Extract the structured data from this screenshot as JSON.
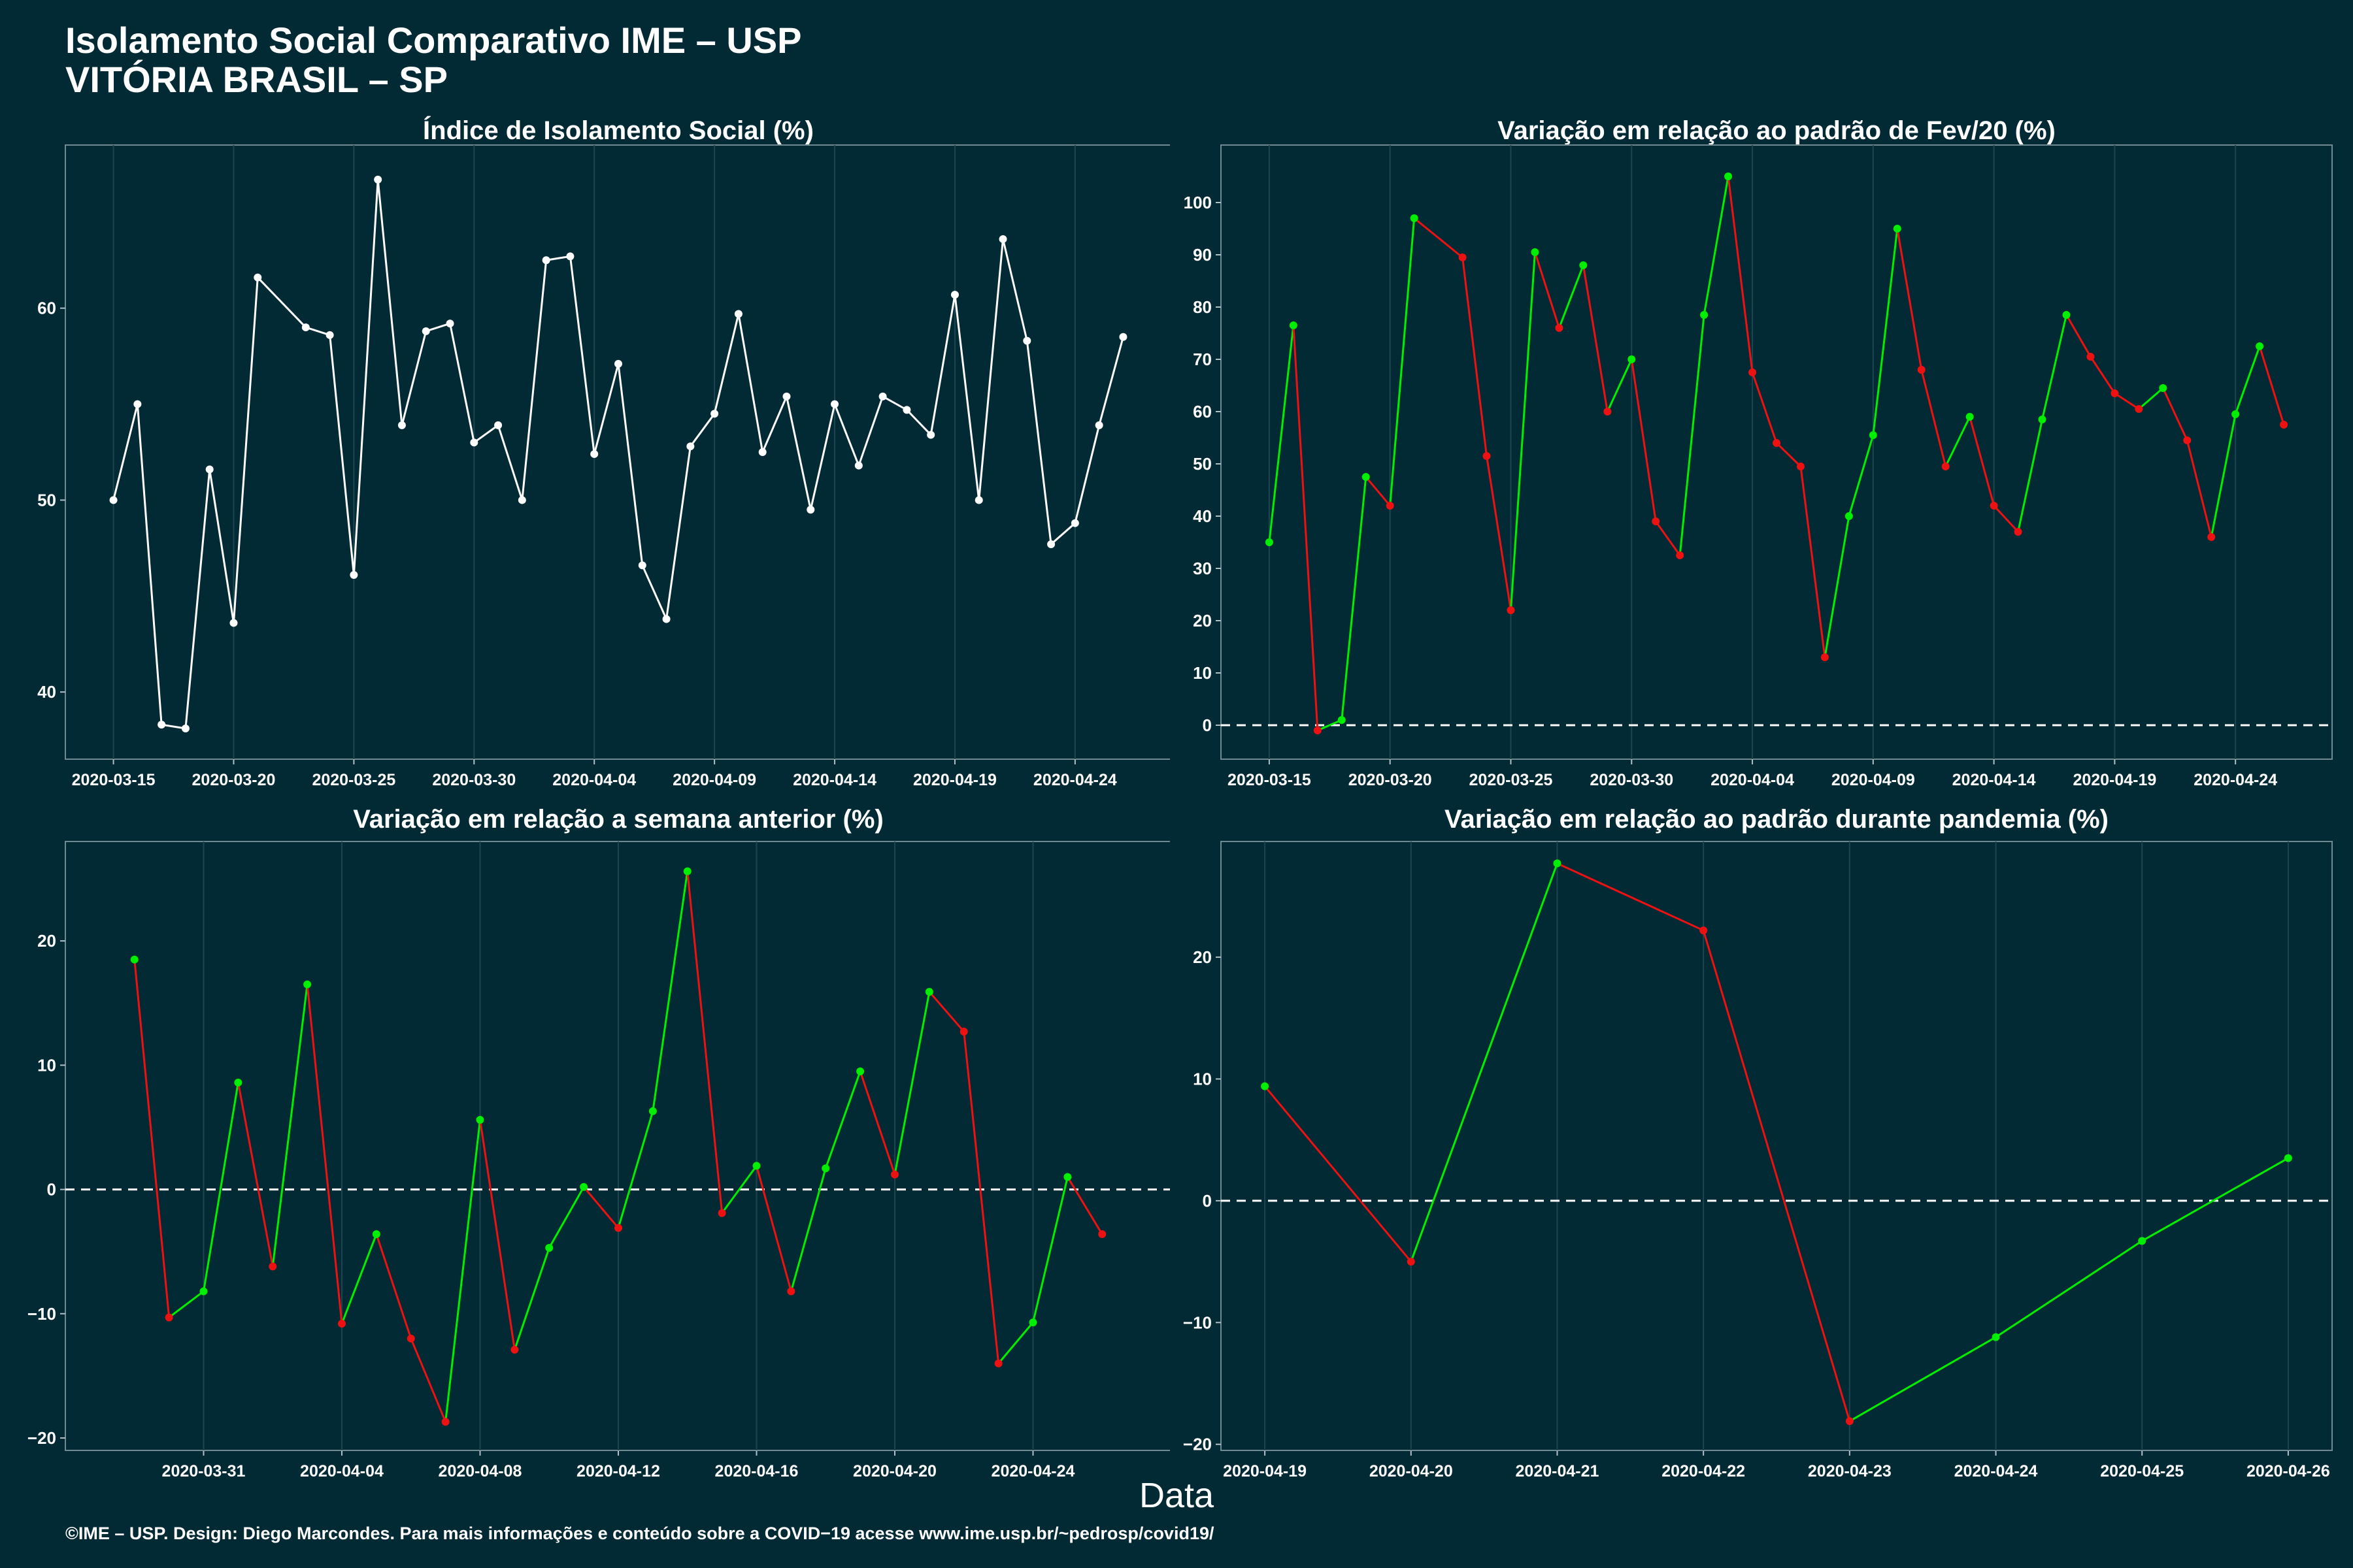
{
  "header": {
    "title": "Isolamento Social Comparativo IME – USP",
    "subtitle": "VITÓRIA BRASIL – SP"
  },
  "x_axis_label": "Data",
  "footer": "©IME – USP. Design: Diego Marcondes. Para mais informações e conteúdo sobre a COVID−19 acesse www.ime.usp.br/~pedrosp/covid19/",
  "colors": {
    "background": "#022a35",
    "line_white": "#ffffff",
    "positive": "#00ee00",
    "negative": "#ee1111",
    "zero_line": "#ffffff"
  },
  "chart_data": [
    {
      "id": "p1",
      "type": "line",
      "title": "Índice de Isolamento Social (%)",
      "xlim": [
        "2020-03-13",
        "2020-04-28"
      ],
      "xticks": [
        "2020-03-15",
        "2020-03-20",
        "2020-03-25",
        "2020-03-30",
        "2020-04-04",
        "2020-04-09",
        "2020-04-14",
        "2020-04-19",
        "2020-04-24"
      ],
      "ylim": [
        36.5,
        68.5
      ],
      "yticks": [
        40,
        50,
        60
      ],
      "color_mode": "white",
      "zero_line": false,
      "series": [
        {
          "x": [
            "2020-03-15",
            "2020-03-16",
            "2020-03-17",
            "2020-03-18",
            "2020-03-19",
            "2020-03-20",
            "2020-03-21",
            "2020-03-23",
            "2020-03-24",
            "2020-03-25",
            "2020-03-26",
            "2020-03-27",
            "2020-03-28",
            "2020-03-29",
            "2020-03-30",
            "2020-03-31",
            "2020-04-01",
            "2020-04-02",
            "2020-04-03",
            "2020-04-04",
            "2020-04-05",
            "2020-04-06",
            "2020-04-07",
            "2020-04-08",
            "2020-04-09",
            "2020-04-10",
            "2020-04-11",
            "2020-04-12",
            "2020-04-13",
            "2020-04-14",
            "2020-04-15",
            "2020-04-16",
            "2020-04-17",
            "2020-04-18",
            "2020-04-19",
            "2020-04-20",
            "2020-04-21",
            "2020-04-22",
            "2020-04-23",
            "2020-04-24",
            "2020-04-25",
            "2020-04-26"
          ],
          "y": [
            50.0,
            55.0,
            38.3,
            38.1,
            51.6,
            43.6,
            61.6,
            59.0,
            58.6,
            46.1,
            66.7,
            53.9,
            58.8,
            59.2,
            53.0,
            53.9,
            50.0,
            62.5,
            62.7,
            52.4,
            57.1,
            46.6,
            43.8,
            52.8,
            54.5,
            59.7,
            52.5,
            55.4,
            49.5,
            55.0,
            51.8,
            55.4,
            54.7,
            53.4,
            60.7,
            50.0,
            63.6,
            58.3,
            47.7,
            48.8,
            53.9,
            58.5
          ]
        }
      ]
    },
    {
      "id": "p2",
      "type": "line",
      "title": "Variação em relação ao padrão de Fev/20 (%)",
      "xlim": [
        "2020-03-13",
        "2020-04-28"
      ],
      "xticks": [
        "2020-03-15",
        "2020-03-20",
        "2020-03-25",
        "2020-03-30",
        "2020-04-04",
        "2020-04-09",
        "2020-04-14",
        "2020-04-19",
        "2020-04-24"
      ],
      "ylim": [
        -6.5,
        111
      ],
      "yticks": [
        0,
        10,
        20,
        30,
        40,
        50,
        60,
        70,
        80,
        90,
        100
      ],
      "color_mode": "trend",
      "zero_line": true,
      "series": [
        {
          "x": [
            "2020-03-15",
            "2020-03-16",
            "2020-03-17",
            "2020-03-18",
            "2020-03-19",
            "2020-03-20",
            "2020-03-21",
            "2020-03-23",
            "2020-03-24",
            "2020-03-25",
            "2020-03-26",
            "2020-03-27",
            "2020-03-28",
            "2020-03-29",
            "2020-03-30",
            "2020-03-31",
            "2020-04-01",
            "2020-04-02",
            "2020-04-03",
            "2020-04-04",
            "2020-04-05",
            "2020-04-06",
            "2020-04-07",
            "2020-04-08",
            "2020-04-09",
            "2020-04-10",
            "2020-04-11",
            "2020-04-12",
            "2020-04-13",
            "2020-04-14",
            "2020-04-15",
            "2020-04-16",
            "2020-04-17",
            "2020-04-18",
            "2020-04-19",
            "2020-04-20",
            "2020-04-21",
            "2020-04-22",
            "2020-04-23",
            "2020-04-24",
            "2020-04-25"
          ],
          "y": [
            35.0,
            76.5,
            -1.0,
            1.0,
            47.5,
            42.0,
            97.0,
            89.5,
            51.5,
            22.0,
            90.5,
            76.0,
            88.0,
            60.0,
            70.0,
            39.0,
            32.5,
            78.5,
            105.0,
            67.5,
            54.0,
            49.5,
            13.0,
            40.0,
            55.5,
            95.0,
            68.0,
            49.5,
            59.0,
            42.0,
            37.0,
            58.5,
            78.5,
            70.5,
            63.5,
            60.5,
            64.5,
            54.5,
            36.0,
            59.5,
            72.5
          ],
          "extra": {
            "x": "2020-04-26",
            "y": 57.5
          }
        }
      ]
    },
    {
      "id": "p3",
      "type": "line",
      "title": "Variação em relação a semana anterior (%)",
      "xlim": [
        "2020-03-27",
        "2020-04-28"
      ],
      "xticks": [
        "2020-03-31",
        "2020-04-04",
        "2020-04-08",
        "2020-04-12",
        "2020-04-16",
        "2020-04-20",
        "2020-04-24"
      ],
      "ylim": [
        -21,
        28
      ],
      "yticks": [
        -20,
        -10,
        0,
        10,
        20
      ],
      "color_mode": "trend",
      "zero_line": true,
      "series": [
        {
          "x": [
            "2020-03-29",
            "2020-03-30",
            "2020-03-31",
            "2020-04-01",
            "2020-04-02",
            "2020-04-03",
            "2020-04-04",
            "2020-04-05",
            "2020-04-06",
            "2020-04-07",
            "2020-04-08",
            "2020-04-09",
            "2020-04-10",
            "2020-04-11",
            "2020-04-12",
            "2020-04-13",
            "2020-04-14",
            "2020-04-15",
            "2020-04-16",
            "2020-04-17",
            "2020-04-18",
            "2020-04-19",
            "2020-04-20",
            "2020-04-21",
            "2020-04-22",
            "2020-04-23",
            "2020-04-24",
            "2020-04-25",
            "2020-04-26"
          ],
          "y": [
            18.5,
            -10.3,
            -8.2,
            8.6,
            -6.2,
            16.5,
            -10.8,
            -3.6,
            -12.0,
            -18.7,
            5.6,
            -12.9,
            -4.7,
            0.2,
            -3.1,
            6.3,
            25.6,
            -1.9,
            1.9,
            -8.2,
            1.7,
            9.5,
            1.2,
            15.9,
            12.7,
            -14.0,
            -10.7,
            1.0,
            -3.6
          ]
        }
      ]
    },
    {
      "id": "p4",
      "type": "line",
      "title": "Variação em relação ao padrão durante pandemia (%)",
      "xlim": [
        "2020-04-18.7",
        "2020-04-26.3"
      ],
      "xticks": [
        "2020-04-19",
        "2020-04-20",
        "2020-04-21",
        "2020-04-22",
        "2020-04-23",
        "2020-04-24",
        "2020-04-25",
        "2020-04-26"
      ],
      "ylim": [
        -20.5,
        29.5
      ],
      "yticks": [
        -20,
        -10,
        0,
        10,
        20
      ],
      "color_mode": "trend",
      "zero_line": true,
      "series": [
        {
          "x": [
            "2020-04-19",
            "2020-04-20",
            "2020-04-21",
            "2020-04-22",
            "2020-04-23",
            "2020-04-24",
            "2020-04-25",
            "2020-04-26"
          ],
          "y": [
            9.4,
            -5.0,
            27.7,
            22.2,
            -18.1,
            -11.2,
            -3.3,
            3.5
          ]
        }
      ]
    }
  ]
}
